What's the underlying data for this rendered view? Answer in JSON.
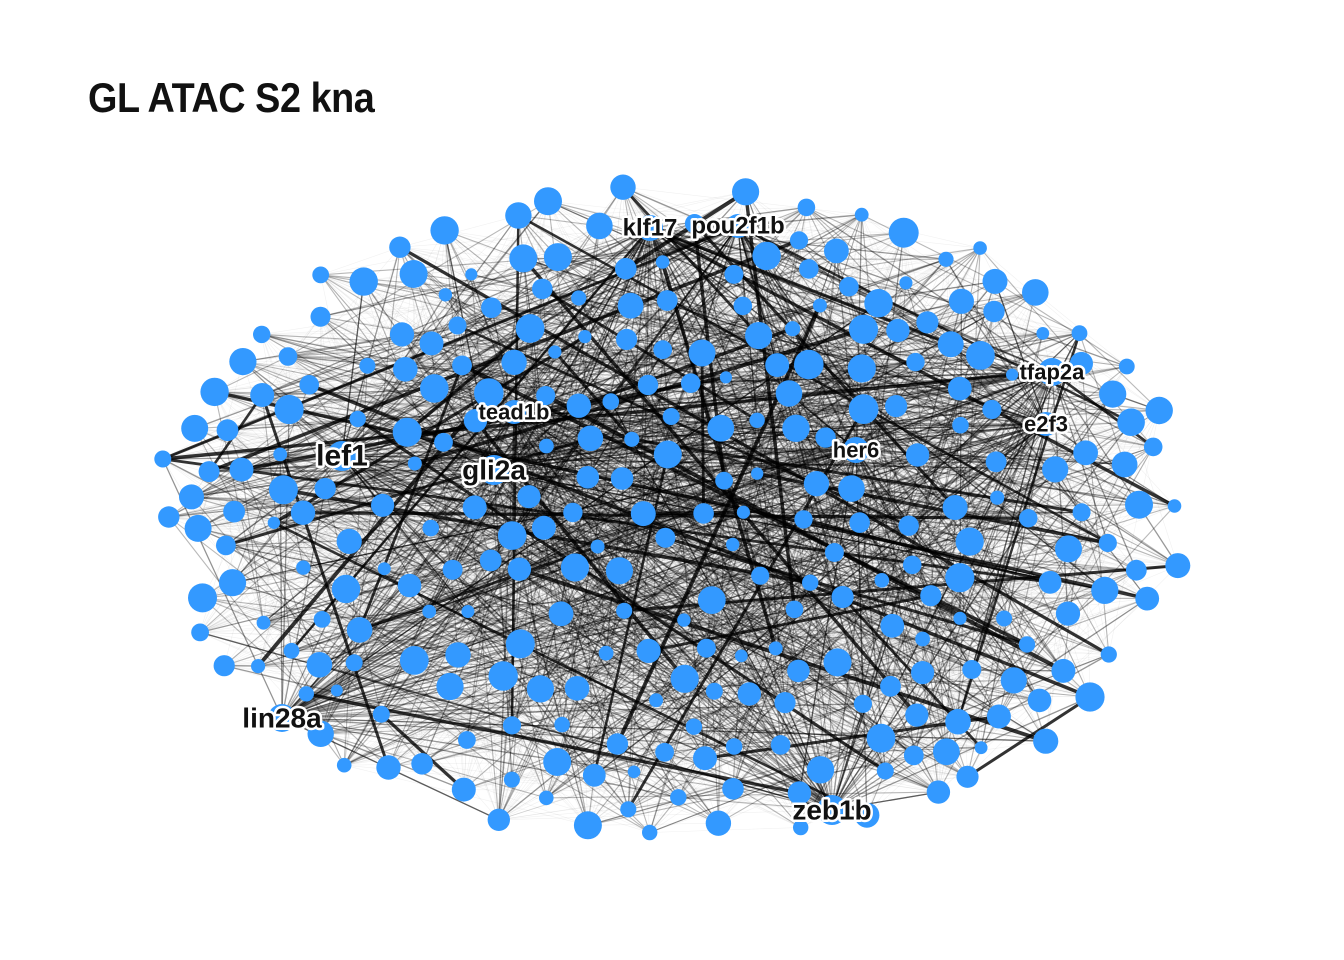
{
  "title": "GL ATAC S2 kna",
  "node_color": "#3399FF",
  "edge_color": "#000000",
  "hub_labels": [
    {
      "id": "klf17",
      "text": "klf17"
    },
    {
      "id": "pou2f1b",
      "text": "pou2f1b"
    },
    {
      "id": "tfap2a",
      "text": "tfap2a"
    },
    {
      "id": "tead1b",
      "text": "tead1b"
    },
    {
      "id": "e2f3",
      "text": "e2f3"
    },
    {
      "id": "lef1",
      "text": "lef1"
    },
    {
      "id": "her6",
      "text": "her6"
    },
    {
      "id": "gli2a",
      "text": "gli2a"
    },
    {
      "id": "lin28a",
      "text": "lin28a"
    },
    {
      "id": "zeb1b",
      "text": "zeb1b"
    }
  ]
}
